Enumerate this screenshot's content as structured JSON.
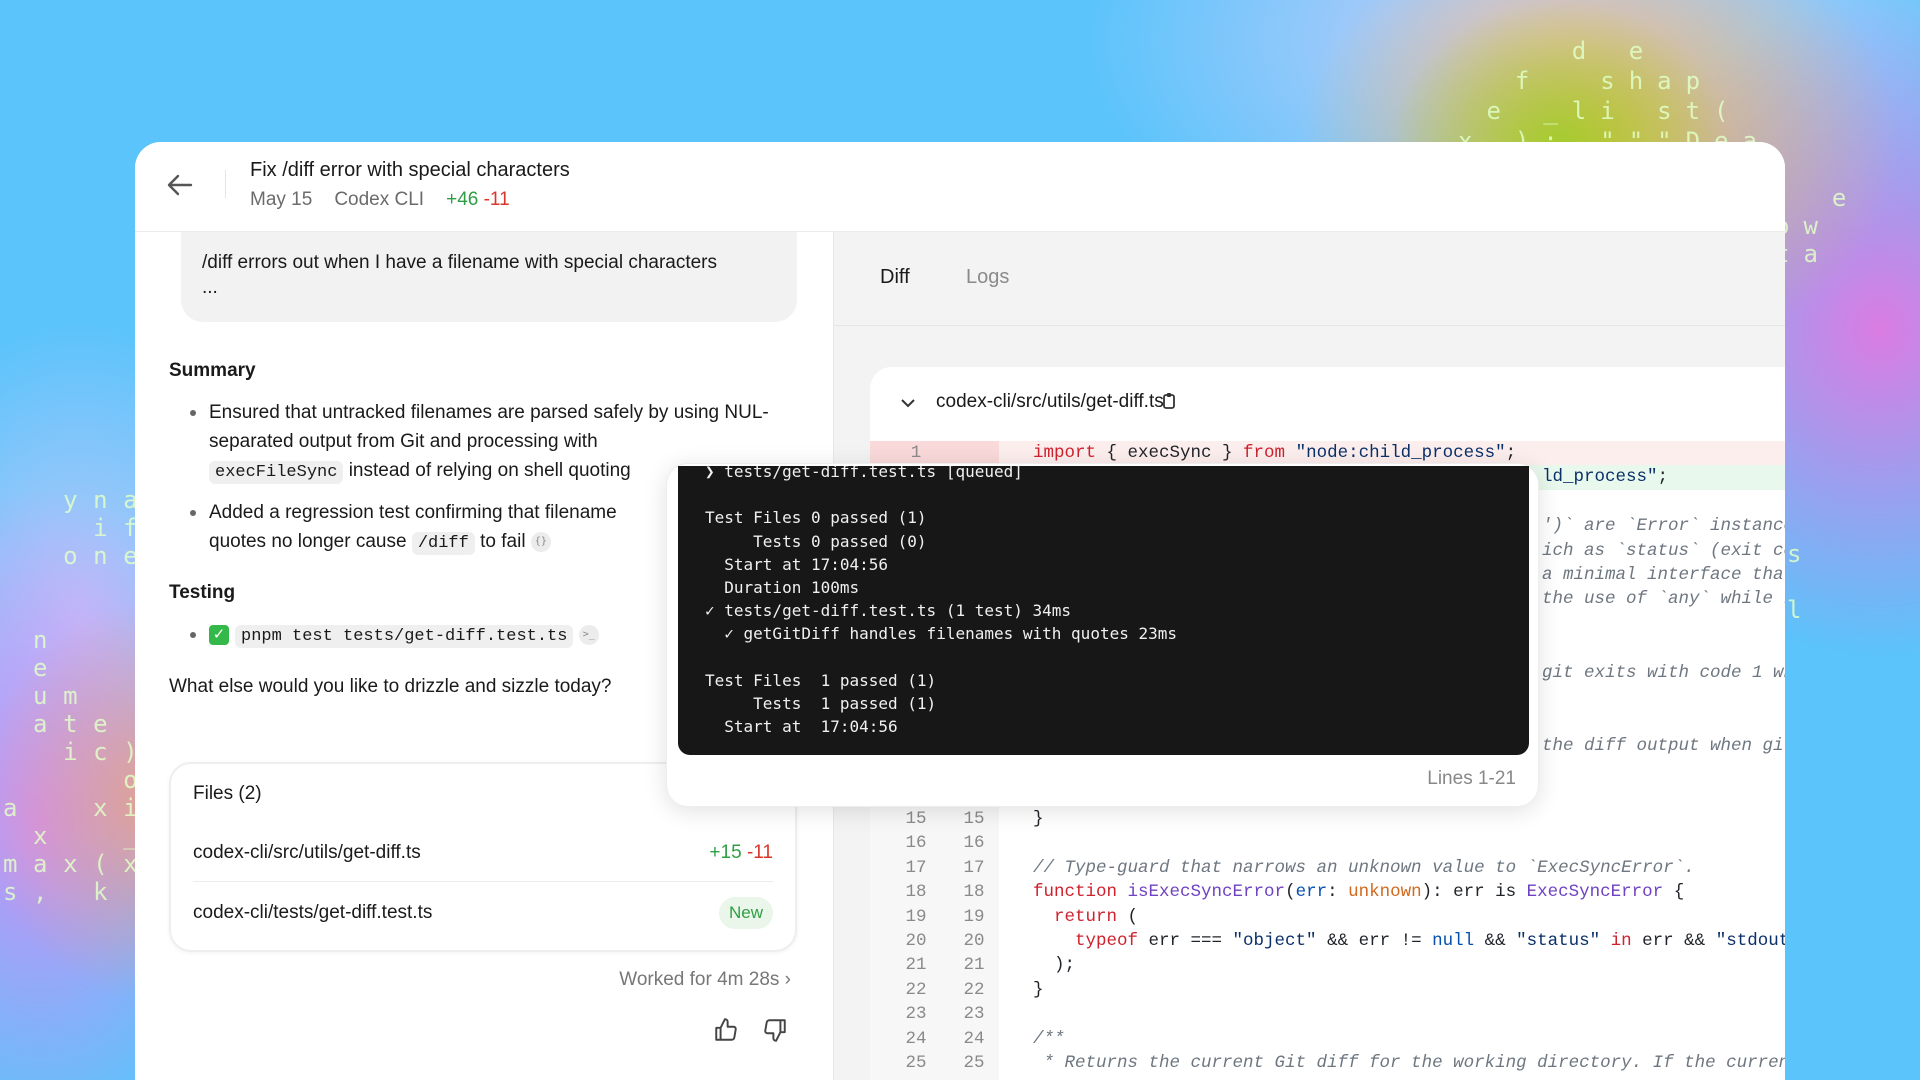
{
  "background_text": {
    "top_right": [
      "    d e",
      "  f  shap",
      " e _li st(",
      "x ): \"\"\"Dea"
    ],
    "right": [
      "  e",
      "ow",
      "ta"
    ],
    "edge": [
      "s",
      "",
      "l"
    ],
    "left": [
      "  yna",
      "   if",
      "  one",
      "",
      "",
      " n",
      " e",
      " um",
      " ate",
      "  ic)",
      "    o",
      "a  xi",
      " x  _",
      "max(x",
      "s, k"
    ]
  },
  "header": {
    "title": "Fix /diff error with special characters",
    "date": "May 15",
    "source": "Codex CLI",
    "additions": "+46",
    "deletions": "-11"
  },
  "prompt": {
    "text": "/diff errors out when I have a filename with special characters",
    "more": "..."
  },
  "summary": {
    "heading": "Summary",
    "bullet1_a": "Ensured that untracked filenames are parsed safely by using NUL-separated output from Git and processing with",
    "bullet1_code": "execFileSync",
    "bullet1_b": "instead of relying on shell quoting",
    "bullet2_a": "Added a regression test confirming that filename",
    "bullet2_b": "quotes no longer cause",
    "bullet2_code": "/diff",
    "bullet2_c": "to fail"
  },
  "testing": {
    "heading": "Testing",
    "command": "pnpm test tests/get-diff.test.ts",
    "status": "✓"
  },
  "question": "What else would you like to drizzle and sizzle today?",
  "files": {
    "heading": "Files (2)",
    "items": [
      {
        "path": "codex-cli/src/utils/get-diff.ts",
        "additions": "+15",
        "deletions": "-11"
      },
      {
        "path": "codex-cli/tests/get-diff.test.ts",
        "badge": "New"
      }
    ]
  },
  "worked": "Worked for 4m 28s",
  "tabs": [
    {
      "label": "Diff",
      "active": true
    },
    {
      "label": "Logs",
      "active": false
    }
  ],
  "diff": {
    "file": "codex-cli/src/utils/get-diff.ts",
    "rows": [
      {
        "old": "1",
        "new": "",
        "type": "del",
        "tokens": [
          [
            "kw",
            "import"
          ],
          [
            "pl",
            " { execSync } "
          ],
          [
            "kw",
            "from"
          ],
          [
            "pl",
            " "
          ],
          [
            "st",
            "\"node:child_process\""
          ],
          [
            "pl",
            ";"
          ]
        ]
      },
      {
        "old": "15",
        "new": "15",
        "tokens": [
          [
            "pl",
            "}"
          ]
        ]
      },
      {
        "old": "16",
        "new": "16",
        "tokens": []
      },
      {
        "old": "17",
        "new": "17",
        "tokens": [
          [
            "cm",
            "// Type-guard that narrows an unknown value to `ExecSyncError`."
          ]
        ]
      },
      {
        "old": "18",
        "new": "18",
        "tokens": [
          [
            "kw",
            "function"
          ],
          [
            "pl",
            " "
          ],
          [
            "fn",
            "isExecSyncError"
          ],
          [
            "pl",
            "("
          ],
          [
            "pa",
            "err"
          ],
          [
            "pl",
            ": "
          ],
          [
            "ty",
            "unknown"
          ],
          [
            "pl",
            "): err is "
          ],
          [
            "fn",
            "ExecSyncError"
          ],
          [
            "pl",
            " {"
          ]
        ]
      },
      {
        "old": "19",
        "new": "19",
        "tokens": [
          [
            "pl",
            "  "
          ],
          [
            "kw",
            "return"
          ],
          [
            "pl",
            " ("
          ]
        ]
      },
      {
        "old": "20",
        "new": "20",
        "tokens": [
          [
            "pl",
            "    "
          ],
          [
            "kw",
            "typeof"
          ],
          [
            "pl",
            " err === "
          ],
          [
            "st",
            "\"object\""
          ],
          [
            "pl",
            " && err != "
          ],
          [
            "nu",
            "null"
          ],
          [
            "pl",
            " && "
          ],
          [
            "st",
            "\"status\""
          ],
          [
            "pl",
            " "
          ],
          [
            "kw",
            "in"
          ],
          [
            "pl",
            " err && "
          ],
          [
            "st",
            "\"stdout"
          ]
        ]
      },
      {
        "old": "21",
        "new": "21",
        "tokens": [
          [
            "pl",
            "  );"
          ]
        ]
      },
      {
        "old": "22",
        "new": "22",
        "tokens": [
          [
            "pl",
            "}"
          ]
        ]
      },
      {
        "old": "23",
        "new": "23",
        "tokens": []
      },
      {
        "old": "24",
        "new": "24",
        "tokens": [
          [
            "cm",
            "/**"
          ]
        ]
      },
      {
        "old": "25",
        "new": "25",
        "tokens": [
          [
            "cm",
            " * Returns the current Git diff for the working directory. If the curren"
          ]
        ]
      }
    ],
    "fragments": [
      {
        "row": 1,
        "type": "add",
        "tokens": [
          [
            "st",
            "ld_process\""
          ],
          [
            "pl",
            ";"
          ]
        ]
      },
      {
        "row": 3,
        "tokens": [
          [
            "cm",
            "')` are `Error` instance"
          ]
        ]
      },
      {
        "row": 4,
        "tokens": [
          [
            "cm",
            "ich as `status` (exit co"
          ]
        ]
      },
      {
        "row": 5,
        "tokens": [
          [
            "cm",
            "a minimal interface that"
          ]
        ]
      },
      {
        "row": 6,
        "tokens": [
          [
            "cm",
            "the use of `any` while k"
          ]
        ]
      },
      {
        "row": 9,
        "tokens": [
          [
            "cm",
            "git exits with code 1 wh"
          ]
        ]
      },
      {
        "row": 12,
        "tokens": [
          [
            "cm",
            "the diff output when git"
          ]
        ]
      }
    ]
  },
  "terminal": {
    "lines": [
      "❯ tests/get-diff.test.ts [queued]",
      "",
      "Test Files 0 passed (1)",
      "     Tests 0 passed (0)",
      "  Start at 17:04:56",
      "  Duration 100ms",
      "✓ tests/get-diff.test.ts (1 test) 34ms",
      "  ✓ getGitDiff handles filenames with quotes 23ms",
      "",
      "Test Files  1 passed (1)",
      "     Tests  1 passed (1)",
      "  Start at  17:04:56"
    ],
    "range": "Lines 1-21"
  },
  "colors": {
    "addition": "#2f9e44",
    "deletion": "#d9362b",
    "terminal_bg": "#171717",
    "background": "#5ac4fb"
  }
}
